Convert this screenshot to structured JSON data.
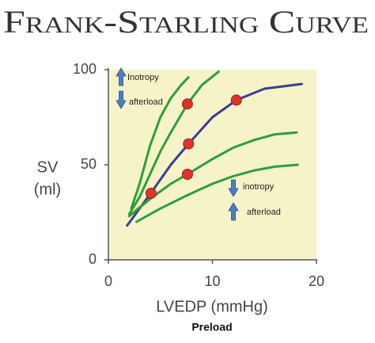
{
  "chart_data": {
    "type": "line",
    "title": "Frank-Starling Curve",
    "y_label": [
      "SV",
      "(ml)"
    ],
    "x_label": "LVEDP (mmHg)",
    "subtitle": "Preload",
    "annotations": [
      "Inotropy",
      "afterload",
      "inotropy",
      "afterload"
    ],
    "xlim": [
      0,
      20
    ],
    "xticks": [
      0,
      10,
      20
    ],
    "ylim": [
      0,
      100
    ],
    "yticks": [
      0,
      50,
      100
    ],
    "grid": false,
    "series": [
      {
        "color": "#2e9e3a",
        "mode": "lines",
        "x": [
          2.2,
          3,
          4,
          5,
          6,
          7,
          7.7
        ],
        "values": [
          27,
          40,
          60,
          75,
          85,
          92,
          96
        ]
      },
      {
        "color": "#2e9e3a",
        "mode": "lines",
        "x": [
          2,
          3,
          4,
          5,
          6,
          7.6,
          9,
          10.6
        ],
        "values": [
          24,
          33,
          45,
          57,
          67,
          82,
          92,
          99
        ]
      },
      {
        "color": "#3a3f94",
        "mode": "lines",
        "x": [
          1.8,
          3,
          4.2,
          6,
          7.7,
          10,
          12.3,
          15,
          18.6
        ],
        "values": [
          18,
          27,
          36,
          50,
          61,
          75,
          84,
          90,
          92.5
        ]
      },
      {
        "color": "#2e9e3a",
        "mode": "lines",
        "x": [
          2,
          4,
          6,
          7.6,
          10,
          12,
          14,
          16,
          18.1
        ],
        "values": [
          23,
          32,
          40,
          45,
          53,
          59,
          63,
          66,
          67
        ]
      },
      {
        "color": "#2e9e3a",
        "mode": "lines",
        "x": [
          2.7,
          5,
          7.6,
          10,
          12,
          14,
          16,
          18.2
        ],
        "values": [
          20,
          27,
          34,
          40,
          44,
          47,
          49,
          50
        ]
      },
      {
        "color": "#e0332b",
        "mode": "markers",
        "x": [
          4.1,
          7.6,
          7.7,
          12.3,
          7.6
        ],
        "values": [
          35,
          82,
          61,
          84,
          45
        ]
      }
    ]
  }
}
